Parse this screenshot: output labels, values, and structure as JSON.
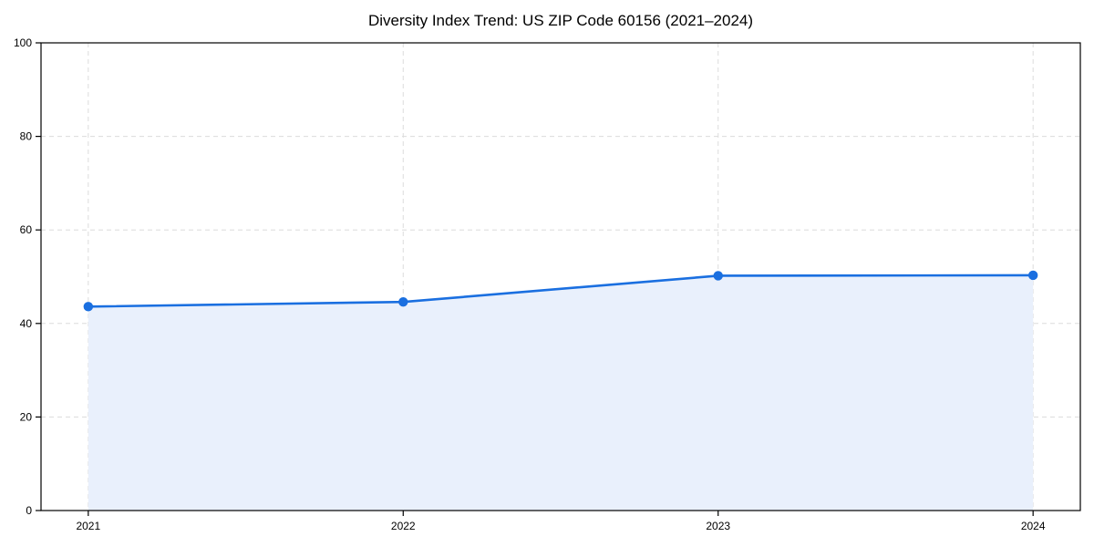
{
  "chart_data": {
    "type": "line",
    "title": "Diversity Index Trend: US ZIP Code 60156 (2021–2024)",
    "x": [
      2021,
      2022,
      2023,
      2024
    ],
    "xticks": [
      "2021",
      "2022",
      "2023",
      "2024"
    ],
    "values": [
      43.6,
      44.6,
      50.2,
      50.3
    ],
    "ylim": [
      0,
      100
    ],
    "yticks": [
      0,
      20,
      40,
      60,
      80,
      100
    ],
    "xlabel": "",
    "ylabel": "",
    "x_margin_frac": 0.05,
    "grid": true,
    "grid_style": "dashed",
    "legend_position": "none",
    "area_fill": true,
    "marker": "circle",
    "colors": {
      "line": "#1a6fe0",
      "marker": "#1a6fe0",
      "area_fill": "#e9f0fc",
      "grid": "#dcdcdc",
      "axis": "#000000",
      "text": "#000000",
      "background": "#ffffff"
    }
  }
}
